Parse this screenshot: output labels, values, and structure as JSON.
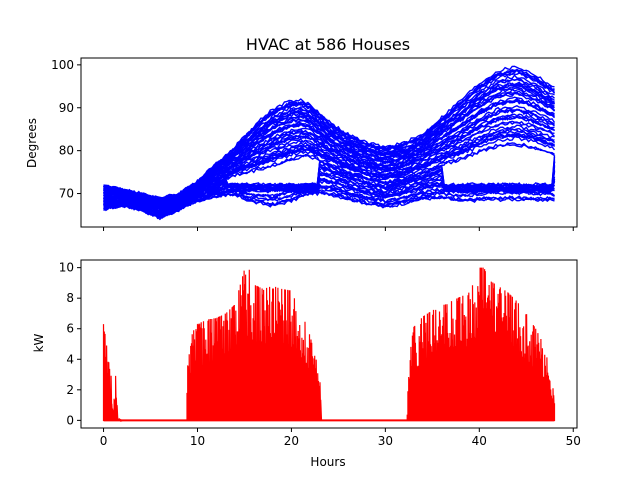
{
  "chart_data": [
    {
      "type": "line",
      "title": "HVAC at 586 Houses",
      "xlabel": "",
      "ylabel": "Degrees",
      "xlim": [
        -2.4,
        50.4
      ],
      "ylim": [
        62.2,
        101.6
      ],
      "xticks": [
        0,
        10,
        20,
        30,
        40,
        50
      ],
      "show_xticklabels": false,
      "yticks": [
        70,
        80,
        90,
        100
      ],
      "ytick_labels": [
        "70",
        "80",
        "90",
        "100"
      ],
      "color": "#0000ff",
      "hours": [
        0,
        2,
        4,
        6,
        8,
        10,
        12,
        14,
        16,
        18,
        20,
        21,
        22,
        24,
        26,
        28,
        30,
        32,
        34,
        36,
        38,
        40,
        42,
        44,
        46,
        48
      ],
      "envelope_upper": [
        72,
        71,
        70,
        69,
        70,
        73,
        77,
        81,
        86,
        90,
        92,
        92,
        91,
        87,
        84,
        82,
        81,
        82,
        84,
        88,
        92,
        96,
        99,
        100,
        98,
        95
      ],
      "envelope_lower": [
        66,
        67,
        66,
        64,
        66,
        68,
        69,
        69,
        67,
        66,
        67,
        68,
        69,
        69,
        68,
        67,
        66,
        67,
        68,
        68,
        67,
        67,
        67,
        67,
        67,
        67
      ],
      "grid": false
    },
    {
      "type": "area",
      "title": "",
      "xlabel": "Hours",
      "ylabel": "kW",
      "xlim": [
        -2.4,
        50.4
      ],
      "ylim": [
        -0.5,
        10.5
      ],
      "xticks": [
        0,
        10,
        20,
        30,
        40,
        50
      ],
      "xtick_labels": [
        "0",
        "10",
        "20",
        "30",
        "40",
        "50"
      ],
      "yticks": [
        0,
        2,
        4,
        6,
        8,
        10
      ],
      "ytick_labels": [
        "0",
        "2",
        "4",
        "6",
        "8",
        "10"
      ],
      "color": "#ff0000",
      "hours": [
        0,
        0.2,
        0.5,
        0.8,
        1.0,
        1.3,
        1.5,
        2,
        5,
        8.8,
        9.0,
        9.5,
        10,
        11,
        12,
        13,
        14,
        15,
        15.5,
        16,
        17,
        18,
        19,
        20,
        21,
        22,
        22.5,
        23,
        23.2,
        27,
        32.3,
        32.5,
        33,
        34,
        35,
        36,
        37,
        38,
        39,
        40,
        40.5,
        41,
        42,
        43,
        44,
        45,
        46,
        47,
        47.5,
        48
      ],
      "kw_peak": [
        6.3,
        5.5,
        4.0,
        3.0,
        0.3,
        3.1,
        0.1,
        0,
        0,
        0,
        4.5,
        5.8,
        6.3,
        6.6,
        6.7,
        7.0,
        7.6,
        9.9,
        9.9,
        8.9,
        8.6,
        8.8,
        8.6,
        8.5,
        7.2,
        5.5,
        4.2,
        3.4,
        0,
        0,
        0,
        3.8,
        6.1,
        6.8,
        7.2,
        7.5,
        7.8,
        8.1,
        8.4,
        10.0,
        10.0,
        9.2,
        8.8,
        8.4,
        7.8,
        7.0,
        6.0,
        4.8,
        3.1,
        1.8
      ],
      "grid": false
    }
  ]
}
